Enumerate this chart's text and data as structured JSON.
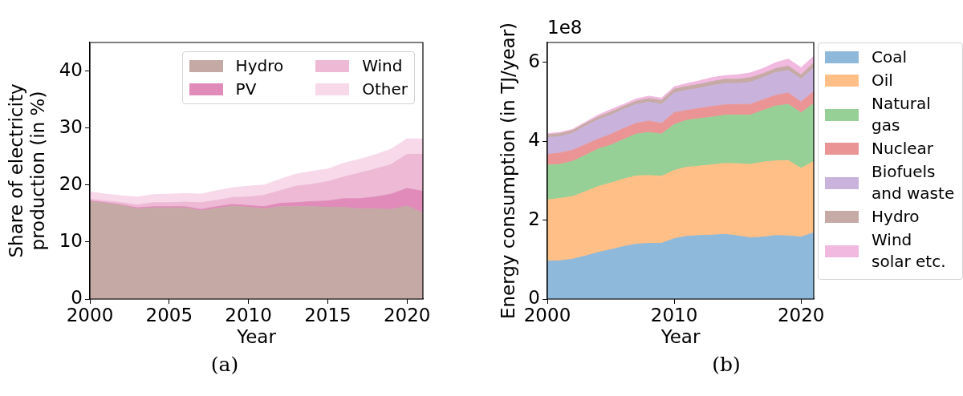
{
  "chart_data": [
    {
      "type": "area",
      "xlabel": "Year",
      "ylabel": "Share of electricity production (in %)",
      "x": [
        2000,
        2001,
        2002,
        2003,
        2004,
        2005,
        2006,
        2007,
        2008,
        2009,
        2010,
        2011,
        2012,
        2013,
        2014,
        2015,
        2016,
        2017,
        2018,
        2019,
        2020,
        2021
      ],
      "xlim": [
        2000,
        2021
      ],
      "xticks": [
        2000,
        2005,
        2010,
        2015,
        2020
      ],
      "ylim": [
        0,
        45
      ],
      "yticks": [
        0,
        10,
        20,
        30,
        40
      ],
      "stacked": true,
      "legend": "top right",
      "annotations": [
        "(a)"
      ],
      "series": [
        {
          "name": "Hydro",
          "color": "#c4a9a4",
          "values": [
            17.1,
            16.8,
            16.4,
            15.8,
            16.0,
            16.0,
            16.0,
            15.5,
            15.9,
            16.3,
            16.1,
            15.8,
            16.2,
            16.2,
            16.2,
            16.1,
            16.1,
            15.8,
            15.8,
            15.7,
            16.3,
            15.1
          ]
        },
        {
          "name": "PV",
          "color": "#e08bba",
          "values": [
            0.1,
            0.1,
            0.1,
            0.2,
            0.2,
            0.2,
            0.2,
            0.2,
            0.3,
            0.3,
            0.3,
            0.4,
            0.6,
            0.7,
            0.9,
            1.1,
            1.5,
            1.8,
            2.1,
            2.7,
            3.1,
            3.8
          ]
        },
        {
          "name": "Wind",
          "color": "#edb9d5",
          "values": [
            0.3,
            0.3,
            0.4,
            0.5,
            0.7,
            0.7,
            0.8,
            1.2,
            1.1,
            1.2,
            1.5,
            2.0,
            2.2,
            2.9,
            3.0,
            3.4,
            3.8,
            4.5,
            4.9,
            5.2,
            6.0,
            6.5
          ]
        },
        {
          "name": "Other",
          "color": "#f7d9ea",
          "values": [
            1.3,
            1.2,
            1.2,
            1.4,
            1.4,
            1.5,
            1.5,
            1.5,
            1.7,
            1.7,
            1.9,
            1.8,
            2.0,
            2.1,
            2.3,
            2.2,
            2.4,
            2.4,
            2.5,
            2.7,
            2.7,
            2.7
          ]
        }
      ]
    },
    {
      "type": "area",
      "xlabel": "Year",
      "ylabel": "Energy consumption (in TJ/year)",
      "x": [
        2000,
        2001,
        2002,
        2003,
        2004,
        2005,
        2006,
        2007,
        2008,
        2009,
        2010,
        2011,
        2012,
        2013,
        2014,
        2015,
        2016,
        2017,
        2018,
        2019,
        2020,
        2021
      ],
      "xlim": [
        2000,
        2021
      ],
      "xticks": [
        2000,
        2010,
        2020
      ],
      "ylim": [
        0,
        6.5
      ],
      "yticks": [
        0,
        2,
        4,
        6
      ],
      "stacked": true,
      "legend": "right",
      "annotations": [
        "1e8",
        "(b)"
      ],
      "series": [
        {
          "name": "Coal",
          "color": "#8fb9da",
          "values": [
            0.96,
            0.97,
            1.01,
            1.09,
            1.18,
            1.25,
            1.33,
            1.39,
            1.41,
            1.41,
            1.53,
            1.59,
            1.61,
            1.62,
            1.64,
            1.6,
            1.55,
            1.57,
            1.61,
            1.6,
            1.57,
            1.68
          ]
        },
        {
          "name": "Oil",
          "color": "#ffbf86",
          "values": [
            1.55,
            1.58,
            1.59,
            1.63,
            1.67,
            1.69,
            1.71,
            1.73,
            1.72,
            1.7,
            1.73,
            1.75,
            1.76,
            1.78,
            1.8,
            1.83,
            1.86,
            1.9,
            1.89,
            1.91,
            1.74,
            1.81
          ]
        },
        {
          "name": "Natural gas",
          "color": "#96d096",
          "values": [
            0.88,
            0.86,
            0.89,
            0.92,
            0.95,
            0.96,
            1.0,
            1.06,
            1.09,
            1.07,
            1.16,
            1.19,
            1.2,
            1.21,
            1.22,
            1.23,
            1.25,
            1.31,
            1.39,
            1.42,
            1.41,
            1.46
          ]
        },
        {
          "name": "Nuclear",
          "color": "#eb9495",
          "values": [
            0.27,
            0.29,
            0.28,
            0.27,
            0.25,
            0.27,
            0.28,
            0.27,
            0.29,
            0.27,
            0.3,
            0.25,
            0.26,
            0.27,
            0.26,
            0.27,
            0.27,
            0.27,
            0.27,
            0.29,
            0.27,
            0.31
          ]
        },
        {
          "name": "Biofuels and waste",
          "color": "#c9b3dc",
          "values": [
            0.43,
            0.42,
            0.43,
            0.47,
            0.49,
            0.49,
            0.49,
            0.48,
            0.48,
            0.48,
            0.5,
            0.51,
            0.51,
            0.53,
            0.54,
            0.53,
            0.56,
            0.56,
            0.58,
            0.57,
            0.58,
            0.6
          ]
        },
        {
          "name": "Hydro",
          "color": "#c5aaa5",
          "values": [
            0.07,
            0.07,
            0.07,
            0.07,
            0.07,
            0.08,
            0.07,
            0.08,
            0.09,
            0.1,
            0.1,
            0.1,
            0.1,
            0.1,
            0.11,
            0.11,
            0.12,
            0.1,
            0.1,
            0.11,
            0.11,
            0.12
          ]
        },
        {
          "name": "Wind solar etc.",
          "color": "#f1b9df",
          "values": [
            0.03,
            0.03,
            0.03,
            0.03,
            0.05,
            0.06,
            0.05,
            0.06,
            0.06,
            0.06,
            0.06,
            0.07,
            0.09,
            0.1,
            0.09,
            0.11,
            0.12,
            0.13,
            0.15,
            0.18,
            0.18,
            0.17
          ]
        }
      ]
    }
  ]
}
